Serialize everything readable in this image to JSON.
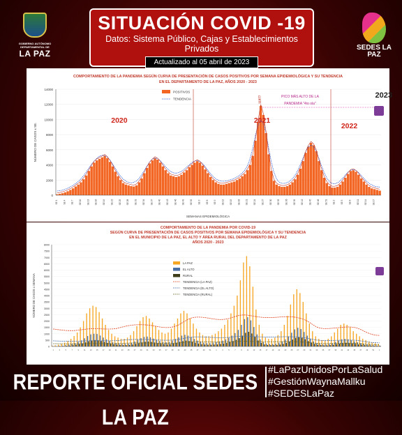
{
  "header": {
    "logo_left_small": "GOBIERNO AUTÓNOMO DEPARTAMENTAL DE",
    "logo_left_name": "LA PAZ",
    "title": "SITUACIÓN COVID -19",
    "subtitle": "Datos: Sistema Público, Cajas y Establecimientos Privados",
    "updated": "Actualizado  al  05  abril  de  2023",
    "logo_right_name": "SEDES LA PAZ"
  },
  "chart_data": [
    {
      "type": "bar",
      "title": "COMPORTAMIENTO DE LA PANDEMIA SEGÚN CURVA DE PRESENTACIÓN DE CASOS POSITIVOS POR SEMANA EPIDEMIOLÓGICA Y SU TENDENCIA",
      "subtitle": "EN EL DEPARTAMENTO DE LA PAZ, AÑOS 2020 - 2023",
      "ylabel": "NÚMERO DE CASOS x SE.",
      "xlabel": "SEMANAS EPIDEMIOLÓGICA",
      "ylim": [
        0,
        14000
      ],
      "yticks": [
        0,
        2000,
        4000,
        6000,
        8000,
        10000,
        12000,
        14000
      ],
      "legend": [
        "POSITIVOS",
        "TENDENCIA"
      ],
      "legend_position": "top-center",
      "series": [
        {
          "name": "POSITIVOS",
          "color": "#f26522",
          "values": [
            120,
            180,
            260,
            380,
            520,
            700,
            900,
            1150,
            1400,
            1700,
            2100,
            2600,
            3200,
            3800,
            4300,
            4600,
            4800,
            5000,
            5200,
            4900,
            4400,
            3800,
            3100,
            2500,
            2000,
            1600,
            1400,
            1300,
            1200,
            1150,
            1300,
            1700,
            2200,
            2900,
            3600,
            4200,
            4600,
            4900,
            4700,
            4300,
            3800,
            3300,
            2900,
            2600,
            2500,
            2400,
            2500,
            2700,
            3000,
            3300,
            3700,
            4000,
            4300,
            4500,
            4300,
            3900,
            3400,
            2900,
            2400,
            2000,
            1700,
            1500,
            1400,
            1400,
            1500,
            1600,
            1700,
            1800,
            2000,
            2200,
            2500,
            2800,
            3300,
            4000,
            5200,
            7200,
            9700,
            11800,
            10600,
            8200,
            5400,
            3200,
            1900,
            1400,
            1200,
            1100,
            1100,
            1200,
            1400,
            1700,
            2100,
            2700,
            3500,
            4500,
            5600,
            6400,
            6900,
            6600,
            5800,
            4500,
            3300,
            2300,
            1600,
            1200,
            1000,
            1000,
            1100,
            1400,
            1800,
            2300,
            2800,
            3200,
            3300,
            3100,
            2700,
            2200,
            1800,
            1400,
            1100,
            900,
            800,
            700,
            600
          ]
        }
      ],
      "trend_color": "#2f5bd1",
      "annotations": {
        "year_labels": [
          "2020",
          "2021",
          "2022",
          "2023"
        ],
        "peak_value": "11977",
        "peak_note_line1": "PICO MÁS ALTO DE LA",
        "peak_note_line2": "PANDEMIA \"4to ola\""
      }
    },
    {
      "type": "bar",
      "title_line1": "COMPORTAMIENTO DE LA PANDEMIA POR COVID-19",
      "title_line2": "SEGÚN CURVA DE PRESENTACIÓN DE CASOS POSITIVOS POR SEMANA EPIDEMIOLÓGICA Y SU TENDENCIA",
      "title_line3": "EN EL  MUNICIPIO DE LA PAZ, EL ALTO Y ÁREA RURAL DEL DEPARTAMENTO DE LA PAZ",
      "title_line4": "AÑOS 2020 - 2023",
      "ylabel": "NÚMERO DE CASOS x SEMANA",
      "ylim": [
        0,
        8000
      ],
      "yticks": [
        0,
        500,
        1000,
        1500,
        2000,
        2500,
        3000,
        3500,
        4000,
        4500,
        5000,
        5500,
        6000,
        6500,
        7000,
        7500,
        8000
      ],
      "legend_position": "top-center",
      "series": [
        {
          "name": "LA PAZ",
          "color": "#f5a623",
          "values": [
            60,
            90,
            140,
            210,
            300,
            430,
            600,
            820,
            1100,
            1500,
            2000,
            2600,
            3000,
            3200,
            3100,
            2700,
            2200,
            1700,
            1300,
            1000,
            800,
            700,
            600,
            600,
            700,
            900,
            1200,
            1600,
            2000,
            2300,
            2400,
            2200,
            1900,
            1600,
            1300,
            1100,
            1000,
            1100,
            1400,
            1800,
            2200,
            2600,
            2800,
            2600,
            2200,
            1800,
            1400,
            1100,
            900,
            800,
            800,
            900,
            1000,
            1200,
            1400,
            1700,
            2100,
            2600,
            3200,
            4000,
            5200,
            6600,
            7100,
            6300,
            4700,
            2900,
            1700,
            1000,
            700,
            600,
            600,
            700,
            900,
            1200,
            1700,
            2400,
            3300,
            4100,
            4500,
            4200,
            3500,
            2600,
            1800,
            1200,
            800,
            600,
            500,
            500,
            600,
            800,
            1100,
            1400,
            1700,
            1800,
            1700,
            1500,
            1200,
            1000,
            800,
            600,
            500,
            400,
            300,
            250,
            200
          ]
        },
        {
          "name": "EL ALTO",
          "color": "#4a6fa5",
          "values": [
            20,
            30,
            50,
            70,
            100,
            140,
            200,
            270,
            360,
            480,
            640,
            820,
            950,
            1000,
            980,
            860,
            700,
            560,
            430,
            330,
            270,
            230,
            200,
            200,
            230,
            300,
            400,
            520,
            650,
            750,
            780,
            720,
            620,
            520,
            430,
            360,
            330,
            360,
            460,
            590,
            720,
            850,
            920,
            850,
            720,
            590,
            460,
            360,
            300,
            260,
            260,
            300,
            330,
            400,
            460,
            560,
            690,
            850,
            1050,
            1300,
            1700,
            2150,
            2300,
            2050,
            1530,
            950,
            560,
            330,
            230,
            200,
            200,
            230,
            300,
            400,
            560,
            790,
            1080,
            1340,
            1470,
            1370,
            1140,
            850,
            590,
            400,
            260,
            200,
            160,
            160,
            200,
            260,
            360,
            460,
            560,
            590,
            560,
            490,
            400,
            330,
            260,
            200,
            160,
            130,
            100,
            80,
            70
          ]
        },
        {
          "name": "RURAL",
          "color": "#3d3d1a",
          "values": [
            10,
            15,
            25,
            35,
            50,
            70,
            100,
            130,
            180,
            240,
            320,
            410,
            470,
            500,
            490,
            430,
            350,
            280,
            220,
            170,
            140,
            120,
            100,
            100,
            120,
            150,
            200,
            260,
            320,
            370,
            390,
            360,
            310,
            260,
            210,
            180,
            160,
            180,
            230,
            290,
            360,
            420,
            460,
            420,
            360,
            290,
            230,
            180,
            150,
            130,
            130,
            150,
            160,
            200,
            230,
            280,
            340,
            420,
            520,
            650,
            850,
            1070,
            1150,
            1020,
            760,
            470,
            280,
            160,
            110,
            100,
            100,
            110,
            150,
            200,
            280,
            390,
            540,
            670,
            730,
            680,
            570,
            420,
            290,
            200,
            130,
            100,
            80,
            80,
            100,
            130,
            180,
            230,
            280,
            290,
            280,
            240,
            200,
            160,
            130,
            100,
            80,
            60,
            50,
            40,
            35
          ]
        }
      ],
      "trend_series": [
        {
          "name": "TENDENCIA (LA PAZ)",
          "color": "#e0401c"
        },
        {
          "name": "TENDENCIA (EL ALTO)",
          "color": "#4a6fa5"
        },
        {
          "name": "TENDENCIA (RURAL)",
          "color": "#6b6b2a"
        }
      ]
    }
  ],
  "footer": {
    "report": "REPORTE OFICIAL SEDES LA PAZ",
    "hashtags": [
      "#LaPazUnidosPorLaSalud",
      "#GestiónWaynaMallku",
      "#SEDESLaPaz"
    ]
  }
}
